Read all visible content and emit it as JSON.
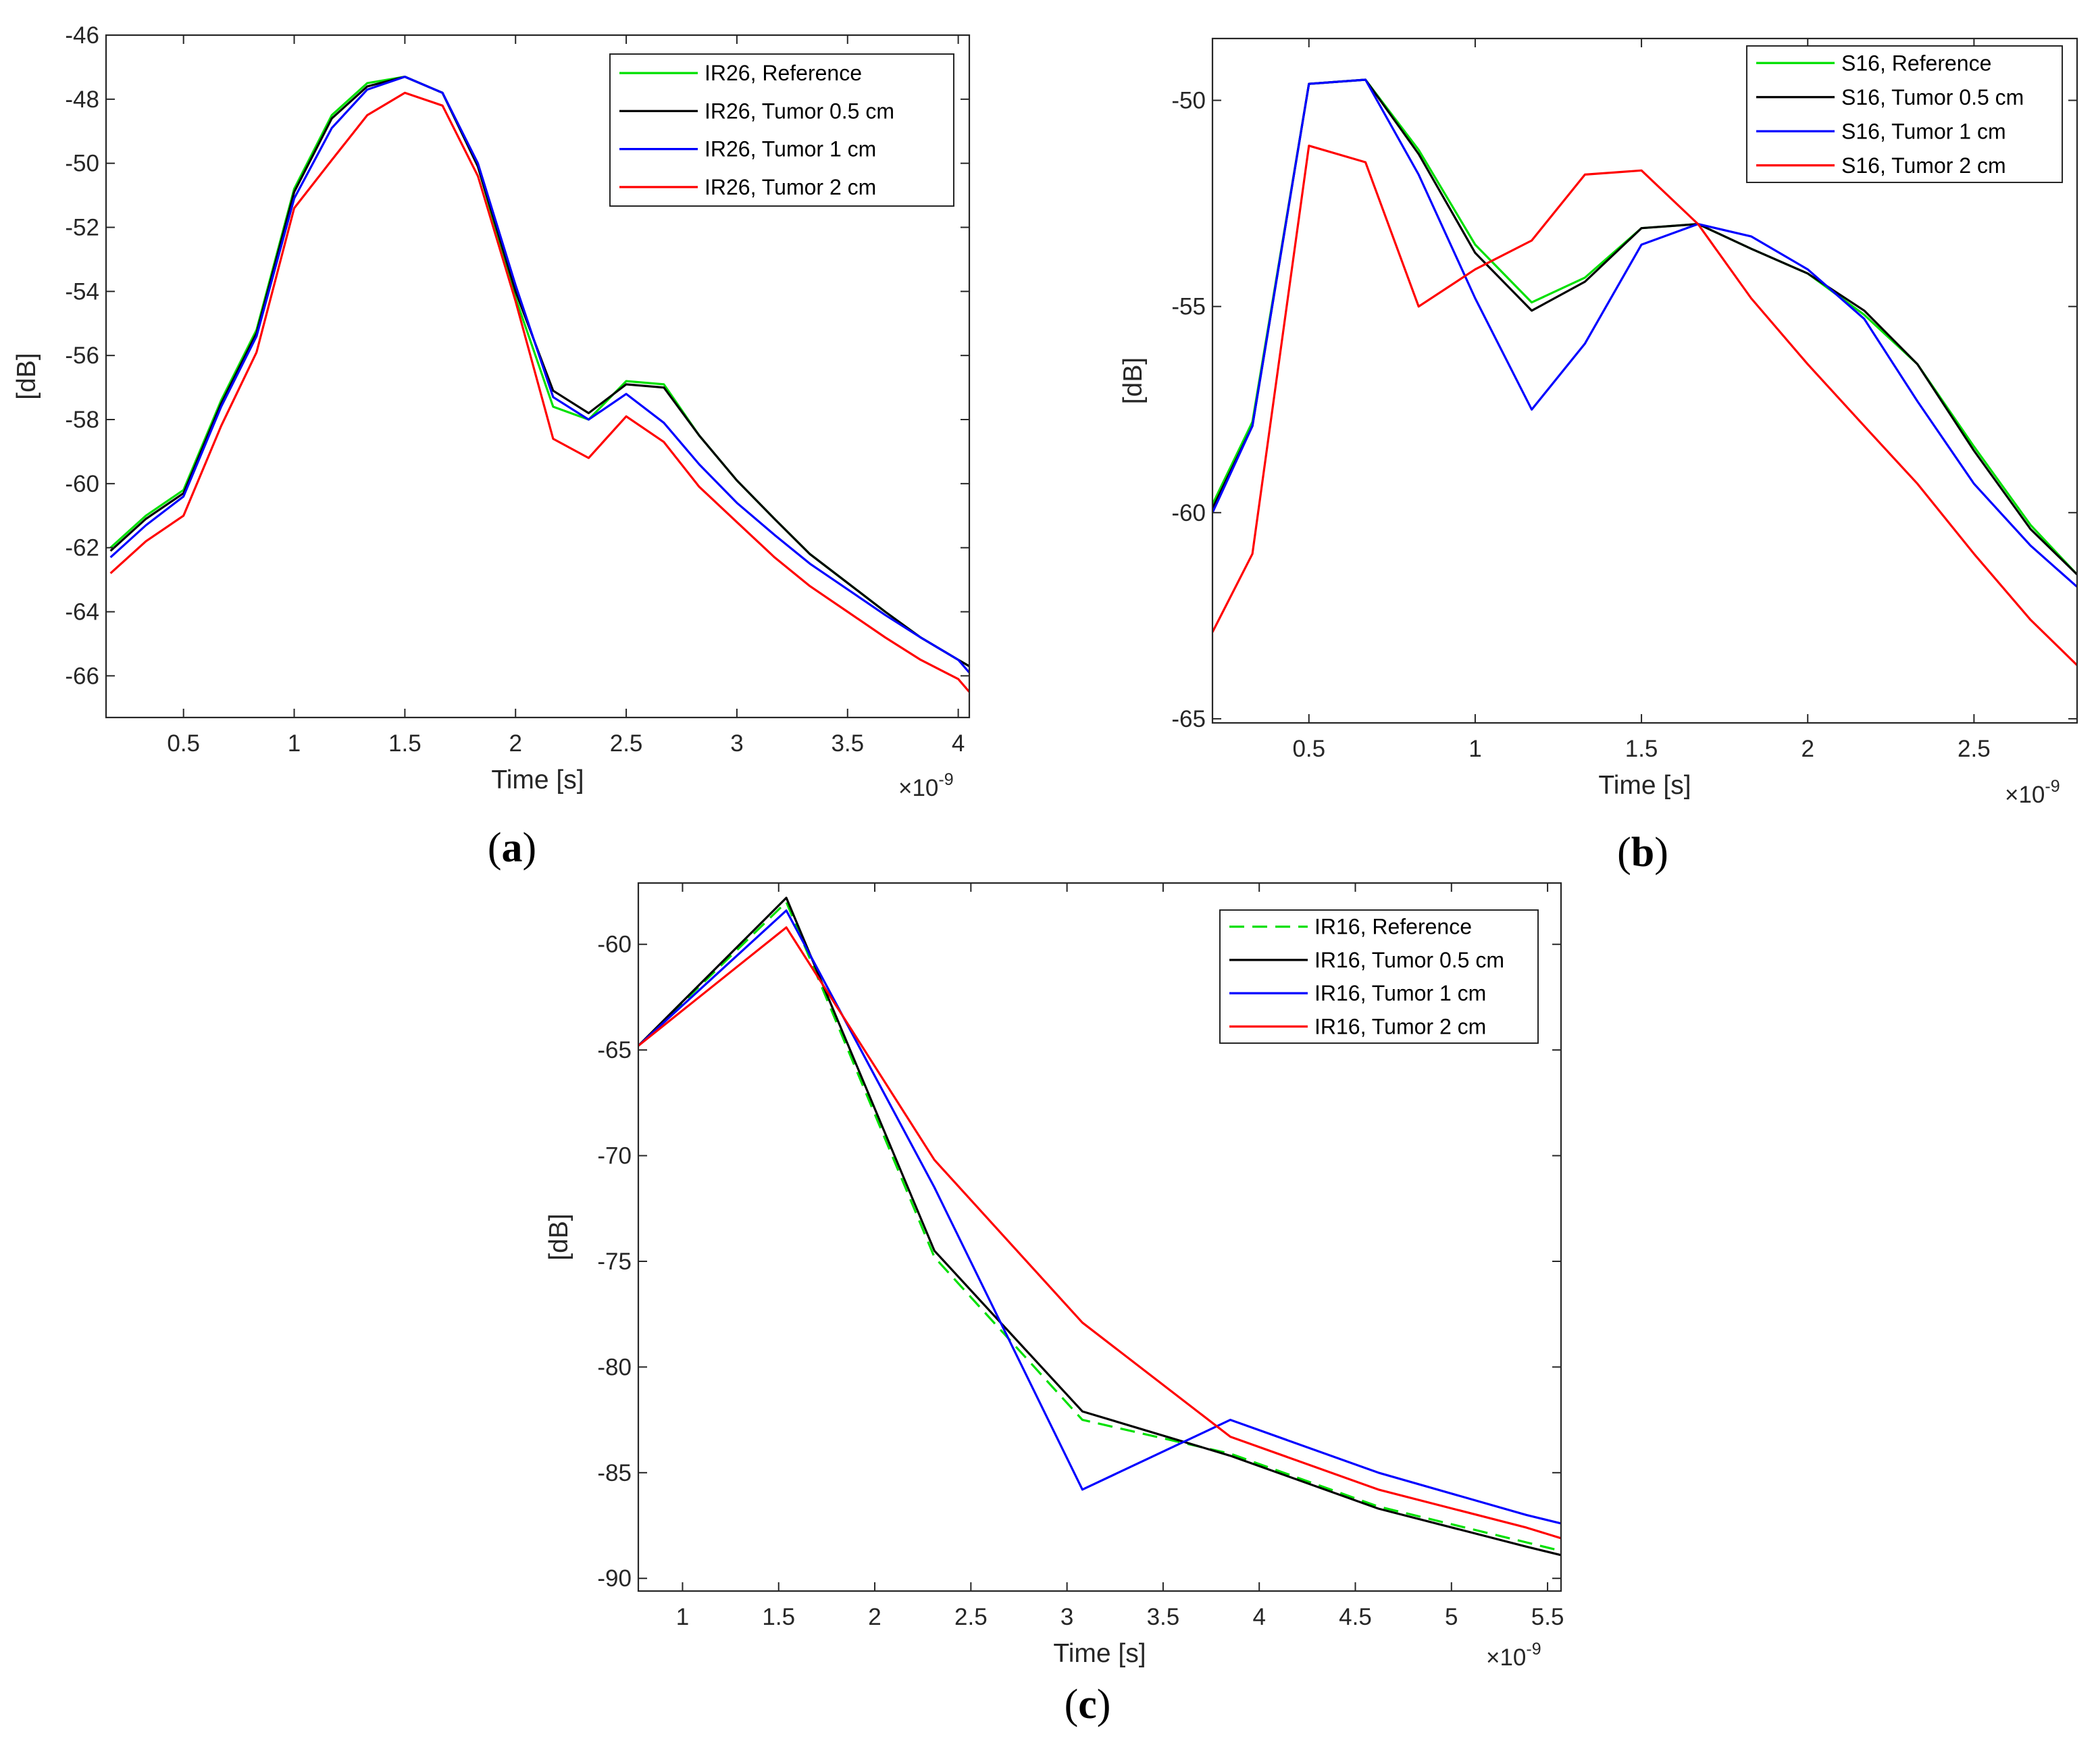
{
  "chart_data": [
    {
      "type": "line",
      "panel_label": "a",
      "xlabel": "Time [s]",
      "ylabel": "[dB]",
      "x_exponent_base": "×10",
      "x_exponent_power": "-9",
      "xlim": [
        0.15,
        4.05
      ],
      "ylim": [
        -67.3,
        -46
      ],
      "xticks": [
        0.5,
        1,
        1.5,
        2,
        2.5,
        3,
        3.5,
        4
      ],
      "xtick_labels": [
        "0.5",
        "1",
        "1.5",
        "2",
        "2.5",
        "3",
        "3.5",
        "4"
      ],
      "yticks": [
        -66,
        -64,
        -62,
        -60,
        -58,
        -56,
        -54,
        -52,
        -50,
        -48,
        -46
      ],
      "ytick_labels": [
        "-66",
        "-64",
        "-62",
        "-60",
        "-58",
        "-56",
        "-54",
        "-52",
        "-50",
        "-48",
        "-46"
      ],
      "legend_position": "top-right",
      "x": [
        0.17,
        0.33,
        0.5,
        0.67,
        0.83,
        1.0,
        1.17,
        1.33,
        1.5,
        1.67,
        1.83,
        2.0,
        2.17,
        2.33,
        2.5,
        2.67,
        2.83,
        3.0,
        3.17,
        3.33,
        3.5,
        3.67,
        3.83,
        4.0,
        4.05
      ],
      "series": [
        {
          "name": "IR26, Reference",
          "color": "#00e000",
          "dash": "solid",
          "values": [
            -62.0,
            -61.0,
            -60.2,
            -57.4,
            -55.2,
            -50.8,
            -48.5,
            -47.5,
            -47.3,
            -47.8,
            -50.1,
            -54.2,
            -57.6,
            -58.0,
            -56.8,
            -56.9,
            -58.5,
            -59.9,
            -61.1,
            -62.2,
            -63.1,
            -64.0,
            -64.8,
            -65.5,
            -65.7
          ]
        },
        {
          "name": "IR26, Tumor 0.5 cm",
          "color": "#000000",
          "dash": "solid",
          "values": [
            -62.1,
            -61.1,
            -60.3,
            -57.5,
            -55.3,
            -50.9,
            -48.6,
            -47.6,
            -47.3,
            -47.8,
            -50.1,
            -54.0,
            -57.1,
            -57.8,
            -56.9,
            -57.0,
            -58.5,
            -59.9,
            -61.1,
            -62.2,
            -63.1,
            -64.0,
            -64.8,
            -65.5,
            -65.7
          ]
        },
        {
          "name": "IR26, Tumor 1 cm",
          "color": "#0000ff",
          "dash": "solid",
          "values": [
            -62.3,
            -61.3,
            -60.4,
            -57.6,
            -55.4,
            -51.1,
            -48.9,
            -47.7,
            -47.3,
            -47.8,
            -50.0,
            -53.8,
            -57.3,
            -58.0,
            -57.2,
            -58.1,
            -59.4,
            -60.6,
            -61.6,
            -62.5,
            -63.3,
            -64.1,
            -64.8,
            -65.5,
            -65.9
          ]
        },
        {
          "name": "IR26, Tumor 2 cm",
          "color": "#ff0000",
          "dash": "solid",
          "values": [
            -62.8,
            -61.8,
            -61.0,
            -58.2,
            -55.9,
            -51.4,
            -49.9,
            -48.5,
            -47.8,
            -48.2,
            -50.4,
            -54.3,
            -58.6,
            -59.2,
            -57.9,
            -58.7,
            -60.1,
            -61.2,
            -62.3,
            -63.2,
            -64.0,
            -64.8,
            -65.5,
            -66.1,
            -66.5
          ]
        }
      ]
    },
    {
      "type": "line",
      "panel_label": "b",
      "xlabel": "Time [s]",
      "ylabel": "[dB]",
      "x_exponent_base": "×10",
      "x_exponent_power": "-9",
      "xlim": [
        0.21,
        2.81
      ],
      "ylim": [
        -65.1,
        -48.5
      ],
      "xticks": [
        0.5,
        1,
        1.5,
        2,
        2.5
      ],
      "xtick_labels": [
        "0.5",
        "1",
        "1.5",
        "2",
        "2.5"
      ],
      "yticks": [
        -65,
        -60,
        -55,
        -50
      ],
      "ytick_labels": [
        "-65",
        "-60",
        "-55",
        "-50"
      ],
      "legend_position": "top-right",
      "x": [
        0.21,
        0.33,
        0.5,
        0.67,
        0.83,
        1.0,
        1.17,
        1.33,
        1.5,
        1.67,
        1.83,
        2.0,
        2.17,
        2.33,
        2.5,
        2.67,
        2.81
      ],
      "series": [
        {
          "name": "S16, Reference",
          "color": "#00e000",
          "dash": "solid",
          "values": [
            -59.8,
            -57.8,
            -49.6,
            -49.5,
            -51.2,
            -53.5,
            -54.9,
            -54.3,
            -53.1,
            -53.0,
            -53.6,
            -54.2,
            -55.2,
            -56.4,
            -58.4,
            -60.3,
            -61.5
          ]
        },
        {
          "name": "S16, Tumor 0.5 cm",
          "color": "#000000",
          "dash": "solid",
          "values": [
            -59.9,
            -57.9,
            -49.6,
            -49.5,
            -51.3,
            -53.7,
            -55.1,
            -54.4,
            -53.1,
            -53.0,
            -53.6,
            -54.2,
            -55.1,
            -56.4,
            -58.5,
            -60.4,
            -61.5
          ]
        },
        {
          "name": "S16, Tumor 1 cm",
          "color": "#0000ff",
          "dash": "solid",
          "values": [
            -60.0,
            -57.9,
            -49.6,
            -49.5,
            -51.8,
            -54.8,
            -57.5,
            -55.9,
            -53.5,
            -53.0,
            -53.3,
            -54.1,
            -55.3,
            -57.3,
            -59.3,
            -60.8,
            -61.8
          ]
        },
        {
          "name": "S16, Tumor 2 cm",
          "color": "#ff0000",
          "dash": "solid",
          "values": [
            -62.9,
            -61.0,
            -51.1,
            -51.5,
            -55.0,
            -54.1,
            -53.4,
            -51.8,
            -51.7,
            -53.0,
            -54.8,
            -56.4,
            -57.9,
            -59.3,
            -61.0,
            -62.6,
            -63.7
          ]
        }
      ]
    },
    {
      "type": "line",
      "panel_label": "c",
      "xlabel": "Time [s]",
      "ylabel": "[dB]",
      "x_exponent_base": "×10",
      "x_exponent_power": "-9",
      "xlim": [
        0.77,
        5.57
      ],
      "ylim": [
        -90.6,
        -57.1
      ],
      "xticks": [
        1,
        1.5,
        2,
        2.5,
        3,
        3.5,
        4,
        4.5,
        5,
        5.5
      ],
      "xtick_labels": [
        "1",
        "1.5",
        "2",
        "2.5",
        "3",
        "3.5",
        "4",
        "4.5",
        "5",
        "5.5"
      ],
      "yticks": [
        -90,
        -85,
        -80,
        -75,
        -70,
        -65,
        -60
      ],
      "ytick_labels": [
        "-90",
        "-85",
        "-80",
        "-75",
        "-70",
        "-65",
        "-60"
      ],
      "legend_position": "top-right",
      "x": [
        0.77,
        1.54,
        2.31,
        3.08,
        3.85,
        4.62,
        5.39,
        5.57
      ],
      "series": [
        {
          "name": "IR16, Reference",
          "color": "#00e000",
          "dash": "dashed",
          "values": [
            -64.8,
            -58.0,
            -74.8,
            -82.5,
            -84.1,
            -86.6,
            -88.3,
            -88.7
          ]
        },
        {
          "name": "IR16, Tumor 0.5 cm",
          "color": "#000000",
          "dash": "solid",
          "values": [
            -64.8,
            -57.8,
            -74.5,
            -82.1,
            -84.2,
            -86.7,
            -88.5,
            -88.9
          ]
        },
        {
          "name": "IR16, Tumor 1 cm",
          "color": "#0000ff",
          "dash": "solid",
          "values": [
            -64.8,
            -58.4,
            -71.5,
            -85.8,
            -82.5,
            -85.0,
            -87.0,
            -87.4
          ]
        },
        {
          "name": "IR16, Tumor 2 cm",
          "color": "#ff0000",
          "dash": "solid",
          "values": [
            -64.8,
            -59.2,
            -70.2,
            -77.9,
            -83.3,
            -85.8,
            -87.6,
            -88.1
          ]
        }
      ]
    }
  ]
}
